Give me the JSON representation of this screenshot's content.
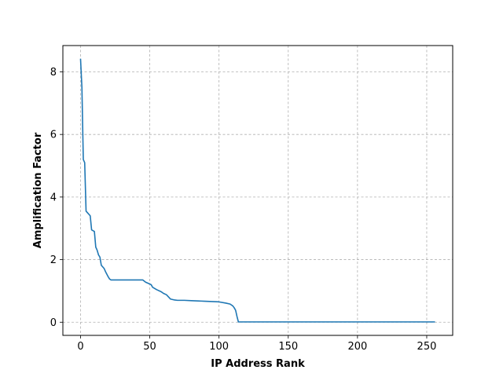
{
  "chart_data": {
    "type": "line",
    "title": "",
    "xlabel": "IP Address Rank",
    "ylabel": "Amplification Factor",
    "xlim": [
      -12.75,
      268.75
    ],
    "ylim": [
      -0.42,
      8.84
    ],
    "xticks": [
      0,
      50,
      100,
      150,
      200,
      250
    ],
    "yticks": [
      0,
      2,
      4,
      6,
      8
    ],
    "grid": true,
    "colors": {
      "line": "#1f77b4",
      "grid": "#b0b0b0"
    },
    "series": [
      {
        "name": "",
        "x": [
          0,
          1,
          2,
          3,
          4,
          5,
          7,
          8,
          10,
          11,
          12,
          13,
          14,
          15,
          17,
          18,
          20,
          21,
          22,
          25,
          30,
          35,
          40,
          45,
          47,
          50,
          51,
          52,
          55,
          58,
          60,
          62,
          65,
          68,
          70,
          75,
          80,
          85,
          90,
          95,
          100,
          105,
          108,
          110,
          111,
          112,
          113,
          114,
          115,
          120,
          150,
          200,
          256
        ],
        "values": [
          8.42,
          7.5,
          5.2,
          5.1,
          3.55,
          3.5,
          3.4,
          2.95,
          2.9,
          2.4,
          2.3,
          2.15,
          2.08,
          1.82,
          1.72,
          1.62,
          1.45,
          1.38,
          1.35,
          1.35,
          1.35,
          1.35,
          1.35,
          1.35,
          1.28,
          1.22,
          1.2,
          1.12,
          1.04,
          0.98,
          0.92,
          0.88,
          0.74,
          0.71,
          0.7,
          0.7,
          0.69,
          0.68,
          0.67,
          0.66,
          0.65,
          0.61,
          0.58,
          0.52,
          0.46,
          0.38,
          0.18,
          0.01,
          0.01,
          0.01,
          0.01,
          0.01,
          0.01
        ]
      }
    ]
  }
}
